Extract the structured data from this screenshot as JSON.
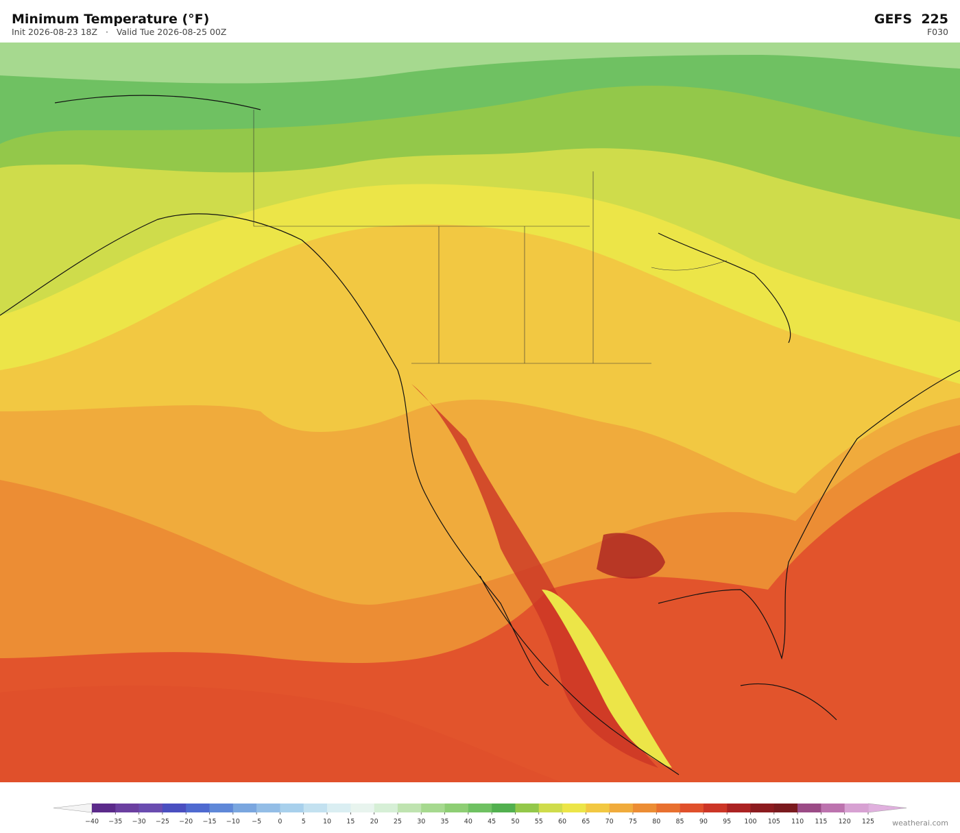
{
  "header": {
    "title": "Minimum Temperature  (°F)",
    "subtitle": "Init 2026-08-23 18Z   ·   Valid Tue 2026-08-25 00Z",
    "model": "GEFS  225",
    "forecast_hour": "F030"
  },
  "colorbar": {
    "ticks": [
      {
        "value": -40,
        "label": "−40"
      },
      {
        "value": -35,
        "label": "−35"
      },
      {
        "value": -30,
        "label": "−30"
      },
      {
        "value": -25,
        "label": "−25"
      },
      {
        "value": -20,
        "label": "−20"
      },
      {
        "value": -15,
        "label": "−15"
      },
      {
        "value": -10,
        "label": "−10"
      },
      {
        "value": -5,
        "label": "−5"
      },
      0,
      5,
      10,
      15,
      20,
      25,
      30,
      35,
      40,
      45,
      50,
      55,
      60,
      65,
      70,
      75,
      80,
      85,
      90,
      95,
      100,
      105,
      110,
      115,
      120,
      125
    ],
    "colors": [
      "#5b2a8a",
      "#6b3fa0",
      "#6a4cb0",
      "#4a4fc0",
      "#4f6ad0",
      "#5f88d8",
      "#7aa6df",
      "#93bde6",
      "#a8d0ec",
      "#c3e1f0",
      "#daeef2",
      "#e8f4ee",
      "#d6efd6",
      "#bfe3b0",
      "#a6d98f",
      "#8ece74",
      "#6fc162",
      "#52b04f",
      "#93c84a",
      "#cfdc4b",
      "#ece548",
      "#f2c842",
      "#f0ab3c",
      "#ec8d34",
      "#e8702f",
      "#e0502b",
      "#cc3526",
      "#ab2222",
      "#8c1b1f",
      "#7a1a1e",
      "#9b4b86",
      "#bc73ae",
      "#d7a1d2"
    ],
    "under_color": "#f4f4f4",
    "over_color": "#e0b0de"
  },
  "footer": {
    "credit": "weatherai.com"
  }
}
